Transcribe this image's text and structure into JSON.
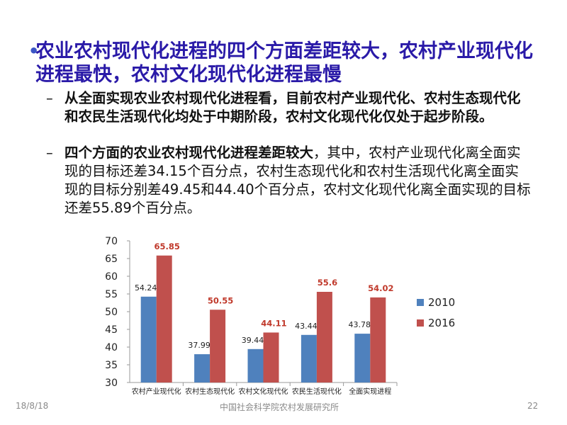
{
  "slide": {
    "heading": "农业农村现代化进程的四个方面差距较大，农村产业现代化进程最快，农村文化现代化进程最慢",
    "sub1_bold": "从全面实现农业农村现代化进程看，目前农村产业现代化、农村生态现代化和农民生活现代化均处于中期阶段，农村文化现代化仅处于起步阶段。",
    "sub2_bold": "四个方面的农业农村现代化进程差距较大",
    "sub2_rest": "，其中，农村产业现代化离全面实现的目标还差34.15个百分点，农村生态现代化和农村生活现代化离全面实现的目标分别差49.45和44.40个百分点，农村文化现代化离全面实现的目标还差55.89个百分点。"
  },
  "footer": {
    "date": "18/8/18",
    "org": "中国社会科学院农村发展研究所",
    "page": "22"
  },
  "colors": {
    "heading": "#2a1aa8",
    "series_2010": "#4f81bd",
    "series_2016": "#c0504d",
    "label_2016": "#c0392b"
  },
  "chart_data": {
    "type": "bar",
    "categories": [
      "农村产业现代化",
      "农村生态现代化",
      "农村文化现代化",
      "农民生活现代化",
      "全面实现进程"
    ],
    "series": [
      {
        "name": "2010",
        "values": [
          54.24,
          37.99,
          39.44,
          43.44,
          43.78
        ],
        "labels": [
          "54.24",
          "37.99",
          "39.44",
          "43.44",
          "43.78"
        ]
      },
      {
        "name": "2016",
        "values": [
          65.85,
          50.55,
          44.11,
          55.6,
          54.02
        ],
        "labels": [
          "65.85",
          "50.55",
          "44.11",
          "55.6",
          "54.02"
        ]
      }
    ],
    "ylim": [
      30,
      70
    ],
    "yticks": [
      "30",
      "35",
      "40",
      "45",
      "50",
      "55",
      "60",
      "65",
      "70"
    ],
    "grid": false,
    "legend_position": "right"
  }
}
